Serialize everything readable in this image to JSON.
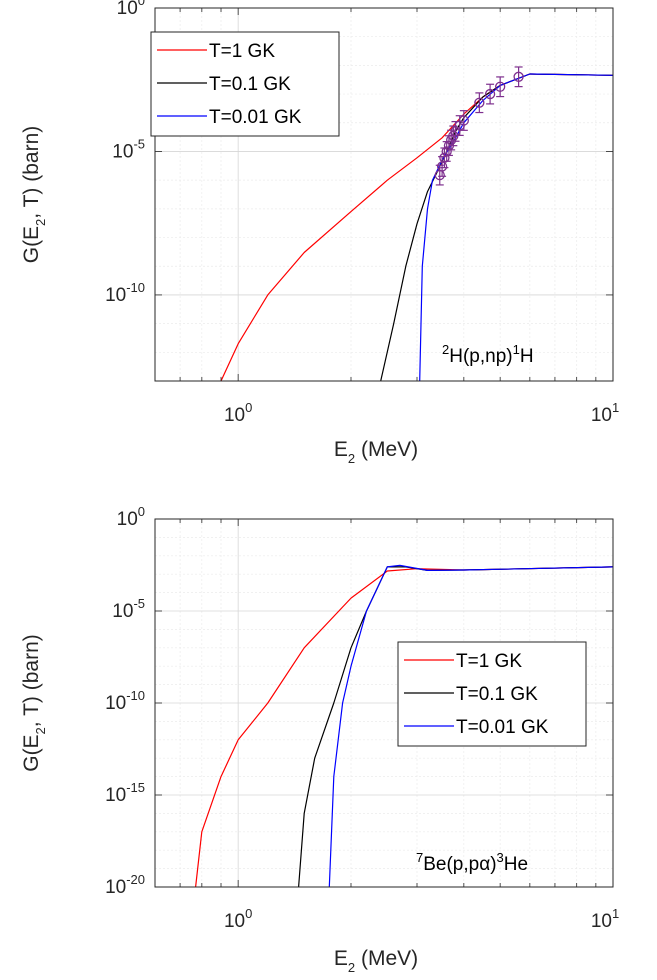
{
  "chart_data": [
    {
      "type": "line",
      "xscale": "log",
      "yscale": "log",
      "xlim": [
        0.6,
        10
      ],
      "ylim": [
        1e-13,
        1
      ],
      "x_ticks": [
        {
          "base": "10",
          "exp": "0"
        },
        {
          "base": "10",
          "exp": "1"
        }
      ],
      "y_ticks": [
        {
          "base": "10",
          "exp": "0",
          "value": 1
        },
        {
          "base": "10",
          "exp": "-5",
          "value": 1e-05
        },
        {
          "base": "10",
          "exp": "-10",
          "value": 1e-10
        }
      ],
      "xlabel": {
        "main": "E",
        "sub": "2",
        "rest": " (MeV)"
      },
      "ylabel": {
        "pre": "G(E",
        "sub": "2",
        "rest": ", T) (barn)"
      },
      "grid": true,
      "legend_position": "top-left",
      "annotation": {
        "sup1": "2",
        "mid": "H(p,np)",
        "sup2": "1",
        "end": "H"
      },
      "series": [
        {
          "name": "T=1 GK",
          "color": "#ff0000",
          "points": [
            [
              0.9,
              1e-13
            ],
            [
              1.0,
              2e-12
            ],
            [
              1.2,
              1e-10
            ],
            [
              1.5,
              3e-09
            ],
            [
              2.0,
              8e-08
            ],
            [
              2.5,
              1e-06
            ],
            [
              3.0,
              6e-06
            ],
            [
              3.5,
              3e-05
            ],
            [
              4.0,
              0.0002
            ],
            [
              4.5,
              0.0008
            ],
            [
              5.0,
              0.002
            ],
            [
              6.0,
              0.005
            ],
            [
              10.0,
              0.0045
            ]
          ]
        },
        {
          "name": "T=0.1 GK",
          "color": "#000000",
          "points": [
            [
              2.4,
              1e-13
            ],
            [
              2.6,
              1e-11
            ],
            [
              2.8,
              1e-09
            ],
            [
              3.0,
              3e-08
            ],
            [
              3.2,
              4e-07
            ],
            [
              3.4,
              2e-06
            ],
            [
              3.6,
              1e-05
            ],
            [
              3.8,
              5e-05
            ],
            [
              4.0,
              0.00015
            ],
            [
              4.5,
              0.0008
            ],
            [
              5.0,
              0.002
            ],
            [
              6.0,
              0.005
            ],
            [
              10.0,
              0.0045
            ]
          ]
        },
        {
          "name": "T=0.01 GK",
          "color": "#0000ff",
          "points": [
            [
              3.05,
              1e-13
            ],
            [
              3.1,
              1e-09
            ],
            [
              3.2,
              1e-07
            ],
            [
              3.3,
              1e-06
            ],
            [
              3.5,
              5e-06
            ],
            [
              3.8,
              3e-05
            ],
            [
              4.0,
              0.0001
            ],
            [
              4.5,
              0.0006
            ],
            [
              5.0,
              0.002
            ],
            [
              6.0,
              0.005
            ],
            [
              10.0,
              0.0045
            ]
          ]
        }
      ],
      "data_points": {
        "color": "#7e2f8e",
        "points": [
          [
            3.45,
            1.5e-06
          ],
          [
            3.5,
            3e-06
          ],
          [
            3.55,
            6e-06
          ],
          [
            3.6,
            1e-05
          ],
          [
            3.65,
            1.6e-05
          ],
          [
            3.7,
            2.5e-05
          ],
          [
            3.75,
            3.5e-05
          ],
          [
            3.8,
            5e-05
          ],
          [
            3.9,
            8e-05
          ],
          [
            4.0,
            0.00012
          ],
          [
            4.4,
            0.0005
          ],
          [
            4.7,
            0.001
          ],
          [
            5.0,
            0.0018
          ],
          [
            5.6,
            0.004
          ]
        ]
      }
    },
    {
      "type": "line",
      "xscale": "log",
      "yscale": "log",
      "xlim": [
        0.6,
        10
      ],
      "ylim": [
        1e-20,
        1
      ],
      "x_ticks": [
        {
          "base": "10",
          "exp": "0"
        },
        {
          "base": "10",
          "exp": "1"
        }
      ],
      "y_ticks": [
        {
          "base": "10",
          "exp": "0",
          "value": 1
        },
        {
          "base": "10",
          "exp": "-5",
          "value": 1e-05
        },
        {
          "base": "10",
          "exp": "-10",
          "value": 1e-10
        },
        {
          "base": "10",
          "exp": "-15",
          "value": 1e-15
        },
        {
          "base": "10",
          "exp": "-20",
          "value": 1e-20
        }
      ],
      "xlabel": {
        "main": "E",
        "sub": "2",
        "rest": " (MeV)"
      },
      "ylabel": {
        "pre": "G(E",
        "sub": "2",
        "rest": ", T) (barn)"
      },
      "grid": true,
      "legend_position": "middle-right",
      "annotation": {
        "sup1": "7",
        "mid": "Be(p,p",
        "greek": "α",
        "mid2": ")",
        "sup2": "3",
        "end": "He"
      },
      "series": [
        {
          "name": "T=1 GK",
          "color": "#ff0000",
          "points": [
            [
              0.77,
              1e-20
            ],
            [
              0.8,
              1e-17
            ],
            [
              0.9,
              1e-14
            ],
            [
              1.0,
              1e-12
            ],
            [
              1.2,
              1e-10
            ],
            [
              1.5,
              1e-07
            ],
            [
              2.0,
              5e-05
            ],
            [
              2.5,
              0.0015
            ],
            [
              3.0,
              0.002
            ],
            [
              4.0,
              0.0017
            ],
            [
              10.0,
              0.0025
            ]
          ]
        },
        {
          "name": "T=0.1 GK",
          "color": "#000000",
          "points": [
            [
              1.45,
              1e-20
            ],
            [
              1.5,
              1e-16
            ],
            [
              1.6,
              1e-13
            ],
            [
              1.8,
              1e-10
            ],
            [
              2.0,
              1e-07
            ],
            [
              2.2,
              1e-05
            ],
            [
              2.5,
              0.0025
            ],
            [
              2.8,
              0.0025
            ],
            [
              3.2,
              0.0016
            ],
            [
              4.0,
              0.0017
            ],
            [
              10.0,
              0.0025
            ]
          ]
        },
        {
          "name": "T=0.01 GK",
          "color": "#0000ff",
          "points": [
            [
              1.75,
              1e-20
            ],
            [
              1.8,
              1e-14
            ],
            [
              1.9,
              1e-10
            ],
            [
              2.0,
              1e-08
            ],
            [
              2.2,
              1e-05
            ],
            [
              2.5,
              0.0025
            ],
            [
              2.7,
              0.003
            ],
            [
              3.2,
              0.0016
            ],
            [
              4.0,
              0.0017
            ],
            [
              10.0,
              0.0025
            ]
          ]
        }
      ]
    }
  ]
}
